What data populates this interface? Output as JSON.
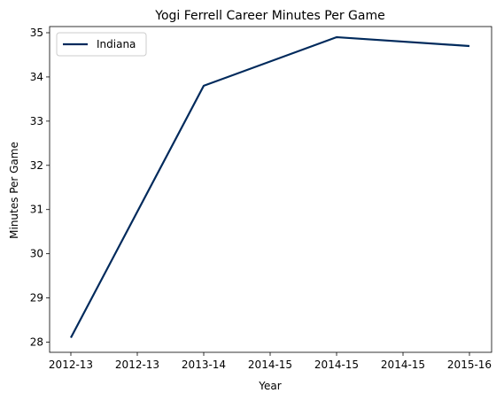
{
  "chart_data": {
    "type": "line",
    "title": "Yogi Ferrell Career Minutes Per Game",
    "xlabel": "Year",
    "ylabel": "Minutes Per Game",
    "x_tick_labels": [
      "2012-13",
      "2012-13",
      "2013-14",
      "2014-15",
      "2014-15",
      "2014-15",
      "2015-16"
    ],
    "y_ticks": [
      28,
      29,
      30,
      31,
      32,
      33,
      34,
      35
    ],
    "ylim": [
      27.77,
      35.14
    ],
    "grid": false,
    "legend_position": "top-left",
    "series": [
      {
        "name": "Indiana",
        "color": "#002a5c",
        "x": [
          "2012-13",
          "2013-14",
          "2014-15",
          "2015-16"
        ],
        "values": [
          28.1,
          33.8,
          34.9,
          34.7
        ]
      }
    ]
  }
}
